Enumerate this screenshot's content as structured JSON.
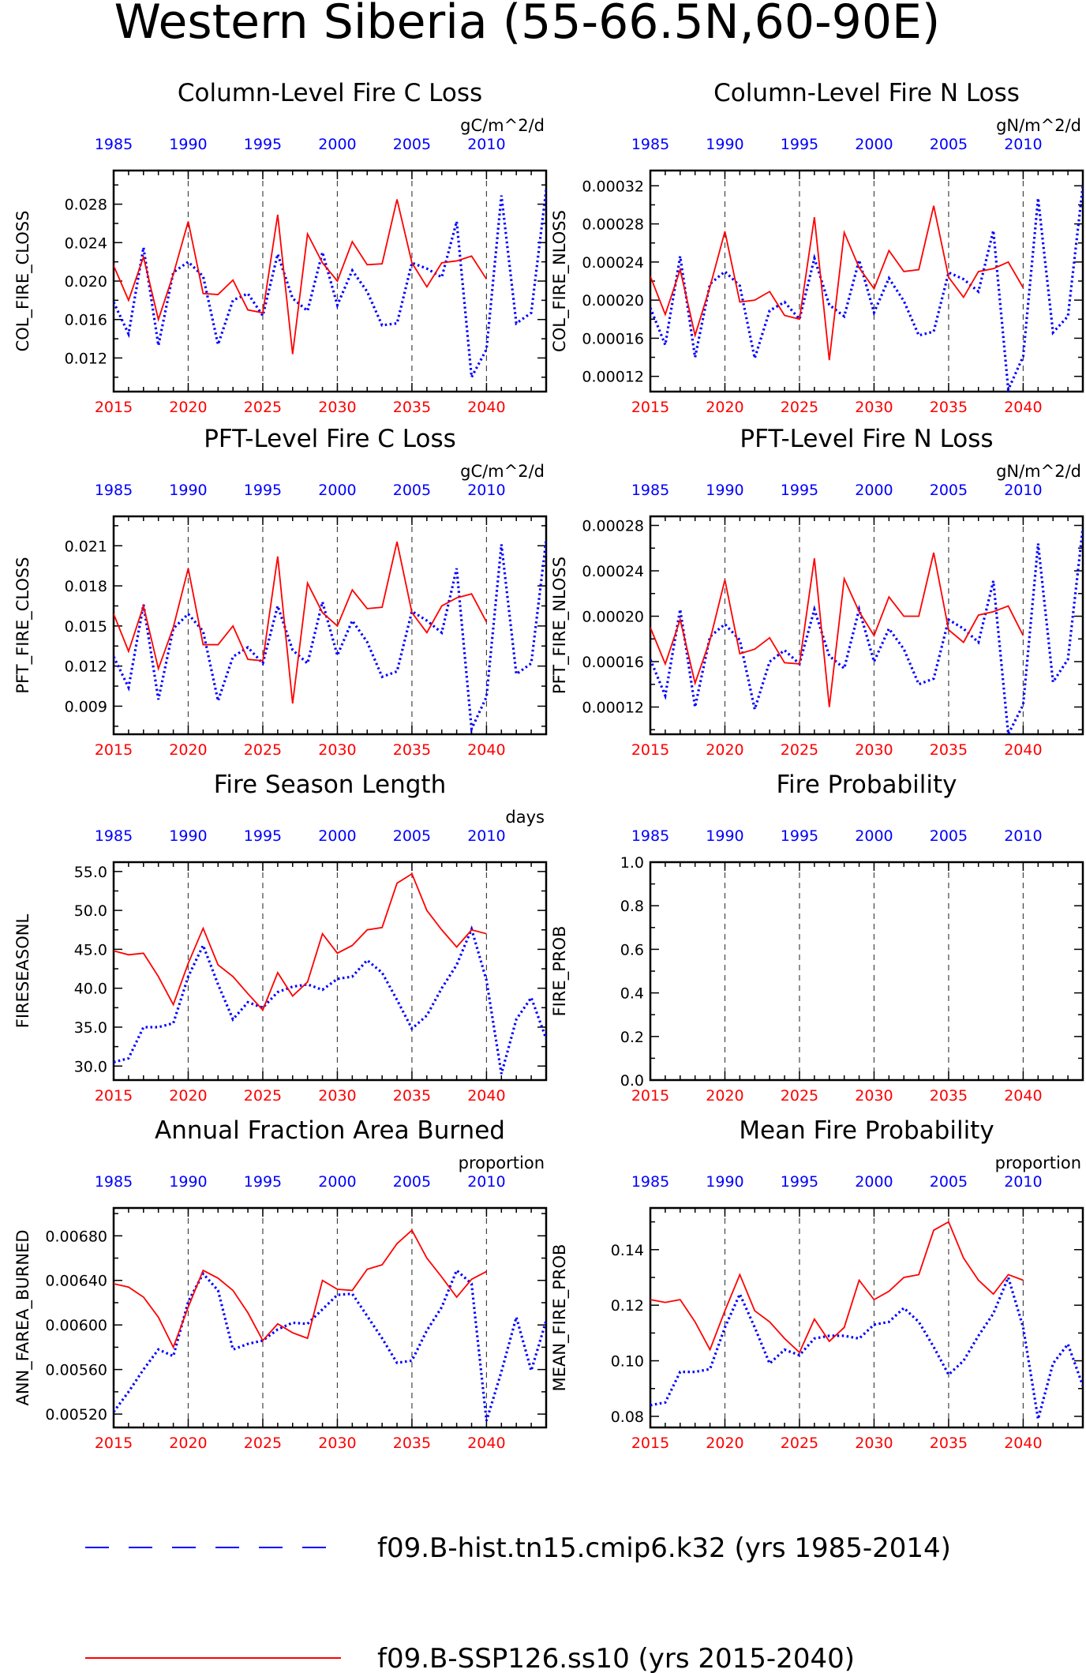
{
  "title": "Western Siberia (55-66.5N,60-90E)",
  "colors": {
    "hist": "#0000ff",
    "ssp": "#ff0000",
    "axis": "#000000"
  },
  "top_axis_ticks": [
    "1985",
    "1990",
    "1995",
    "2000",
    "2005",
    "2010"
  ],
  "bottom_axis_ticks": [
    "2015",
    "2020",
    "2025",
    "2030",
    "2035",
    "2040"
  ],
  "legend": [
    {
      "label": "f09.B-hist.tn15.cmip6.k32 (yrs 1985-2014)",
      "color": "#0000ff",
      "style": "dashed"
    },
    {
      "label": "f09.B-SSP126.ss10 (yrs 2015-2040)",
      "color": "#ff0000",
      "style": "solid"
    }
  ],
  "chart_data": [
    {
      "type": "line",
      "title": "Column-Level Fire C Loss",
      "ylabel": "COL_FIRE_CLOSS",
      "units": "gC/m^2/d",
      "ylim": [
        0.0085,
        0.0315
      ],
      "yticks": [
        0.012,
        0.016,
        0.02,
        0.024,
        0.028
      ],
      "ytick_labels": [
        "0.012",
        "0.016",
        "0.020",
        "0.024",
        "0.028"
      ],
      "series": [
        {
          "key": "hist",
          "x_start": 1985,
          "values": [
            0.0178,
            0.0145,
            0.0235,
            0.0133,
            0.0209,
            0.022,
            0.0205,
            0.0134,
            0.018,
            0.0187,
            0.0164,
            0.0228,
            0.0182,
            0.0169,
            0.023,
            0.0175,
            0.0211,
            0.0189,
            0.0154,
            0.0156,
            0.0219,
            0.0213,
            0.0204,
            0.0262,
            0.01,
            0.0129,
            0.0289,
            0.0156,
            0.0167,
            0.0295
          ]
        },
        {
          "key": "ssp",
          "x_start": 2015,
          "values": [
            0.0216,
            0.018,
            0.0225,
            0.016,
            0.0207,
            0.0262,
            0.0187,
            0.0186,
            0.0201,
            0.017,
            0.0167,
            0.0269,
            0.0124,
            0.0249,
            0.0219,
            0.02,
            0.0241,
            0.0217,
            0.0218,
            0.0285,
            0.0219,
            0.0194,
            0.0219,
            0.0221,
            0.0226,
            0.0202
          ]
        }
      ]
    },
    {
      "type": "line",
      "title": "Column-Level Fire N Loss",
      "ylabel": "COL_FIRE_NLOSS",
      "units": "gN/m^2/d",
      "ylim": [
        0.000104,
        0.000336
      ],
      "yticks": [
        0.00012,
        0.00016,
        0.0002,
        0.00024,
        0.00028,
        0.00032
      ],
      "ytick_labels": [
        "0.00012",
        "0.00016",
        "0.00020",
        "0.00024",
        "0.00028",
        "0.00032"
      ],
      "series": [
        {
          "key": "hist",
          "x_start": 1985,
          "values": [
            0.000192,
            0.000153,
            0.000246,
            0.00014,
            0.000217,
            0.00023,
            0.000215,
            0.000139,
            0.000189,
            0.000198,
            0.00018,
            0.000244,
            0.000195,
            0.000183,
            0.000242,
            0.000187,
            0.000223,
            0.000199,
            0.000163,
            0.000167,
            0.000229,
            0.000222,
            0.000209,
            0.000273,
            0.000106,
            0.000141,
            0.000307,
            0.000166,
            0.000183,
            0.00032
          ]
        },
        {
          "key": "ssp",
          "x_start": 2015,
          "values": [
            0.000225,
            0.000185,
            0.000232,
            0.000163,
            0.000214,
            0.000272,
            0.000198,
            0.0002,
            0.000209,
            0.000184,
            0.00018,
            0.000287,
            0.000137,
            0.000271,
            0.000234,
            0.000212,
            0.000252,
            0.00023,
            0.000232,
            0.000299,
            0.000224,
            0.000203,
            0.00023,
            0.000233,
            0.00024,
            0.000213
          ]
        }
      ]
    },
    {
      "type": "line",
      "title": "PFT-Level Fire C Loss",
      "ylabel": "PFT_FIRE_CLOSS",
      "units": "gC/m^2/d",
      "ylim": [
        0.0069,
        0.0232
      ],
      "yticks": [
        0.009,
        0.012,
        0.015,
        0.018,
        0.021
      ],
      "ytick_labels": [
        "0.009",
        "0.012",
        "0.015",
        "0.018",
        "0.021"
      ],
      "series": [
        {
          "key": "hist",
          "x_start": 1985,
          "values": [
            0.0127,
            0.0104,
            0.0166,
            0.0095,
            0.0148,
            0.0159,
            0.0146,
            0.0094,
            0.0127,
            0.0134,
            0.0122,
            0.0165,
            0.0132,
            0.0122,
            0.0168,
            0.0128,
            0.0154,
            0.0138,
            0.0112,
            0.0116,
            0.0161,
            0.0154,
            0.0145,
            0.0193,
            0.0073,
            0.0097,
            0.0211,
            0.0114,
            0.0122,
            0.0214
          ]
        },
        {
          "key": "ssp",
          "x_start": 2015,
          "values": [
            0.0159,
            0.0131,
            0.0165,
            0.0118,
            0.0149,
            0.0193,
            0.0136,
            0.0136,
            0.015,
            0.0125,
            0.0124,
            0.0202,
            0.0092,
            0.0182,
            0.016,
            0.015,
            0.0177,
            0.0163,
            0.0164,
            0.0213,
            0.016,
            0.0145,
            0.0165,
            0.0171,
            0.0174,
            0.0153
          ]
        }
      ]
    },
    {
      "type": "line",
      "title": "PFT-Level Fire N Loss",
      "ylabel": "PFT_FIRE_NLOSS",
      "units": "gN/m^2/d",
      "ylim": [
        9.6e-05,
        0.000288
      ],
      "yticks": [
        0.00012,
        0.00016,
        0.0002,
        0.00024,
        0.00028
      ],
      "ytick_labels": [
        "0.00012",
        "0.00016",
        "0.00020",
        "0.00024",
        "0.00028"
      ],
      "series": [
        {
          "key": "hist",
          "x_start": 1985,
          "values": [
            0.000162,
            0.00013,
            0.000206,
            0.00012,
            0.000182,
            0.000193,
            0.000179,
            0.000118,
            0.00016,
            0.00017,
            0.000158,
            0.000206,
            0.000165,
            0.000154,
            0.000206,
            0.00016,
            0.000189,
            0.000171,
            0.00014,
            0.000145,
            0.000197,
            0.000189,
            0.000177,
            0.000231,
            9.6e-05,
            0.000122,
            0.000264,
            0.000142,
            0.000162,
            0.000278
          ]
        },
        {
          "key": "ssp",
          "x_start": 2015,
          "values": [
            0.00019,
            0.000158,
            0.000197,
            0.000141,
            0.000179,
            0.000232,
            0.000167,
            0.000171,
            0.000181,
            0.000159,
            0.000158,
            0.000251,
            0.00012,
            0.000233,
            0.000204,
            0.000183,
            0.000217,
            0.0002,
            0.0002,
            0.000256,
            0.000188,
            0.000177,
            0.000201,
            0.000204,
            0.000209,
            0.000183
          ]
        }
      ]
    },
    {
      "type": "line",
      "title": "Fire Season Length",
      "ylabel": "FIRESEASONL",
      "units": "days",
      "ylim": [
        28.2,
        56.2
      ],
      "yticks": [
        30,
        35,
        40,
        45,
        50,
        55
      ],
      "ytick_labels": [
        "30.0",
        "35.0",
        "40.0",
        "45.0",
        "50.0",
        "55.0"
      ],
      "series": [
        {
          "key": "hist",
          "x_start": 1985,
          "values": [
            30.5,
            31,
            35,
            35,
            35.5,
            41.5,
            45.5,
            40.5,
            36,
            38.2,
            37.5,
            39.5,
            40.2,
            40.5,
            39.8,
            41.2,
            41.5,
            43.6,
            42,
            38.5,
            34.8,
            36.5,
            40,
            43,
            47.6,
            41,
            29,
            36,
            38.8,
            33.5
          ]
        },
        {
          "key": "ssp",
          "x_start": 2015,
          "values": [
            44.8,
            44.3,
            44.5,
            41.5,
            37.9,
            43.2,
            47.7,
            43,
            41.5,
            39.3,
            37.2,
            42,
            39,
            40.8,
            47,
            44.5,
            45.5,
            47.5,
            47.8,
            53.5,
            54.7,
            50,
            47.5,
            45.3,
            47.5,
            47
          ]
        }
      ]
    },
    {
      "type": "line",
      "title": "Fire Probability",
      "ylabel": "FIRE_PROB",
      "units": "",
      "ylim": [
        0,
        1
      ],
      "yticks": [
        0,
        0.2,
        0.4,
        0.6,
        0.8,
        1.0
      ],
      "ytick_labels": [
        "0.0",
        "0.2",
        "0.4",
        "0.6",
        "0.8",
        "1.0"
      ],
      "series": []
    },
    {
      "type": "line",
      "title": "Annual Fraction Area Burned",
      "ylabel": "ANN_FAREA_BURNED",
      "units": "proportion",
      "ylim": [
        0.00508,
        0.00705
      ],
      "yticks": [
        0.0052,
        0.0056,
        0.006,
        0.0064,
        0.0068
      ],
      "ytick_labels": [
        "0.00520",
        "0.00560",
        "0.00600",
        "0.00640",
        "0.00680"
      ],
      "series": [
        {
          "key": "hist",
          "x_start": 1985,
          "values": [
            0.00522,
            0.0054,
            0.0056,
            0.00578,
            0.00572,
            0.00621,
            0.00646,
            0.00631,
            0.00578,
            0.00583,
            0.00586,
            0.00596,
            0.00602,
            0.00601,
            0.00614,
            0.00627,
            0.00628,
            0.00608,
            0.00588,
            0.00566,
            0.00568,
            0.00595,
            0.00616,
            0.00649,
            0.00637,
            0.00514,
            0.00558,
            0.00607,
            0.00559,
            0.00604
          ]
        },
        {
          "key": "ssp",
          "x_start": 2015,
          "values": [
            0.00637,
            0.00634,
            0.00625,
            0.00607,
            0.0058,
            0.00616,
            0.00649,
            0.00642,
            0.00631,
            0.00611,
            0.00586,
            0.00601,
            0.00593,
            0.00588,
            0.0064,
            0.00632,
            0.00631,
            0.0065,
            0.00654,
            0.00673,
            0.00685,
            0.0066,
            0.00643,
            0.00625,
            0.00641,
            0.00648
          ]
        }
      ]
    },
    {
      "type": "line",
      "title": "Mean Fire Probability",
      "ylabel": "MEAN_FIRE_PROB",
      "units": "proportion",
      "ylim": [
        0.076,
        0.155
      ],
      "yticks": [
        0.08,
        0.1,
        0.12,
        0.14
      ],
      "ytick_labels": [
        "0.08",
        "0.10",
        "0.12",
        "0.14"
      ],
      "series": [
        {
          "key": "hist",
          "x_start": 1985,
          "values": [
            0.084,
            0.085,
            0.096,
            0.096,
            0.097,
            0.112,
            0.124,
            0.112,
            0.099,
            0.104,
            0.102,
            0.108,
            0.109,
            0.109,
            0.108,
            0.113,
            0.114,
            0.119,
            0.114,
            0.105,
            0.095,
            0.1,
            0.109,
            0.117,
            0.13,
            0.112,
            0.079,
            0.099,
            0.106,
            0.091
          ]
        },
        {
          "key": "ssp",
          "x_start": 2015,
          "values": [
            0.122,
            0.121,
            0.122,
            0.114,
            0.104,
            0.118,
            0.131,
            0.118,
            0.114,
            0.108,
            0.103,
            0.115,
            0.107,
            0.112,
            0.129,
            0.122,
            0.125,
            0.13,
            0.131,
            0.147,
            0.15,
            0.137,
            0.129,
            0.124,
            0.131,
            0.129
          ]
        }
      ]
    }
  ]
}
